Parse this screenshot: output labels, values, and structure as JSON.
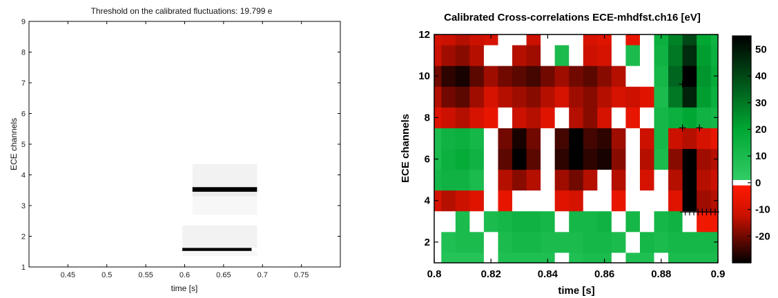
{
  "chart_data": [
    {
      "type": "heatmap",
      "title": "Threshold on the calibrated fluctuations: 19.799 e",
      "xlabel": "time [s]",
      "ylabel": "ECE channels",
      "xlim": [
        0.4,
        0.8
      ],
      "ylim": [
        1,
        9
      ],
      "xticks": [
        "0.45",
        "0.5",
        "0.55",
        "0.6",
        "0.65",
        "0.7",
        "0.75"
      ],
      "xtick_values": [
        0.45,
        0.5,
        0.55,
        0.6,
        0.65,
        0.7,
        0.75
      ],
      "yticks": [
        "1",
        "2",
        "3",
        "4",
        "5",
        "6",
        "7",
        "8",
        "9"
      ],
      "ytick_values": [
        1,
        2,
        3,
        4,
        5,
        6,
        7,
        8,
        9
      ],
      "colormap": [
        "#ffffff",
        "#000000"
      ],
      "cells": [
        {
          "x0": 0.61,
          "x1": 0.693,
          "y0": 3.6,
          "y1": 4.35,
          "value": 0.05
        },
        {
          "x0": 0.61,
          "x1": 0.693,
          "y0": 3.45,
          "y1": 3.6,
          "value": 1.0
        },
        {
          "x0": 0.61,
          "x1": 0.693,
          "y0": 3.3,
          "y1": 3.45,
          "value": 0.08
        },
        {
          "x0": 0.61,
          "x1": 0.693,
          "y0": 2.7,
          "y1": 3.3,
          "value": 0.03
        },
        {
          "x0": 0.597,
          "x1": 0.693,
          "y0": 1.62,
          "y1": 2.35,
          "value": 0.05
        },
        {
          "x0": 0.597,
          "x1": 0.686,
          "y0": 1.52,
          "y1": 1.62,
          "value": 1.0
        },
        {
          "x0": 0.597,
          "x1": 0.693,
          "y0": 1.35,
          "y1": 1.52,
          "value": 0.03
        }
      ]
    },
    {
      "type": "heatmap",
      "title": "Calibrated Cross-correlations ECE-mhdfst.ch16 [eV]",
      "xlabel": "time [s]",
      "ylabel": "ECE channels",
      "xlim": [
        0.8,
        0.9
      ],
      "ylim": [
        1,
        12
      ],
      "xticks": [
        "0.8",
        "0.82",
        "0.84",
        "0.86",
        "0.88",
        "0.9"
      ],
      "xtick_values": [
        0.8,
        0.82,
        0.84,
        0.86,
        0.88,
        0.9
      ],
      "yticks": [
        "2",
        "4",
        "6",
        "8",
        "10",
        "12"
      ],
      "ytick_values": [
        2,
        4,
        6,
        8,
        10,
        12
      ],
      "colorbar": {
        "ticks": [
          "50",
          "40",
          "30",
          "20",
          "10",
          "0",
          "-10",
          "-20"
        ],
        "tick_values": [
          50,
          40,
          30,
          20,
          10,
          0,
          -10,
          -20
        ],
        "range": [
          -30,
          55
        ],
        "neutral_band": [
          -1,
          1
        ]
      },
      "colors": {
        "positive_strong": "#000000",
        "positive_mid": "#00a833",
        "positive_weak": "#33cc66",
        "neutral": "#ffffff",
        "negative_weak": "#ff1a00",
        "negative_mid": "#cc1100",
        "negative_strong": "#000000"
      },
      "time_columns": [
        0.8,
        0.805,
        0.81,
        0.815,
        0.82,
        0.825,
        0.83,
        0.835,
        0.84,
        0.845,
        0.85,
        0.855,
        0.86,
        0.865,
        0.87,
        0.875,
        0.88,
        0.885,
        0.89,
        0.895,
        0.9
      ],
      "channel_rows": [
        1,
        2,
        3,
        4,
        5,
        6,
        7,
        8,
        9,
        10,
        11,
        12
      ],
      "values": [
        [
          0,
          6,
          6,
          6,
          0,
          8,
          8,
          8,
          8,
          0,
          8,
          10,
          10,
          0,
          8,
          8,
          0,
          10,
          10,
          10,
          10
        ],
        [
          0,
          8,
          10,
          10,
          0,
          10,
          12,
          12,
          10,
          10,
          10,
          12,
          12,
          10,
          0,
          12,
          10,
          12,
          12,
          12,
          12
        ],
        [
          0,
          0,
          10,
          0,
          10,
          12,
          14,
          14,
          12,
          0,
          12,
          12,
          14,
          0,
          12,
          0,
          12,
          14,
          0,
          -4,
          -4
        ],
        [
          -10,
          -14,
          -12,
          -8,
          0,
          -6,
          0,
          0,
          0,
          -8,
          -10,
          0,
          0,
          -6,
          0,
          0,
          0,
          -8,
          -40,
          -16,
          -14
        ],
        [
          12,
          14,
          14,
          10,
          0,
          -14,
          -18,
          -14,
          0,
          -16,
          -20,
          -14,
          0,
          -14,
          0,
          -10,
          0,
          -14,
          -30,
          -14,
          -12
        ],
        [
          10,
          16,
          18,
          14,
          0,
          -22,
          -30,
          -22,
          0,
          -26,
          -34,
          -26,
          -28,
          -18,
          0,
          -14,
          10,
          -18,
          -30,
          -16,
          -14
        ],
        [
          10,
          14,
          16,
          12,
          0,
          -20,
          -28,
          -20,
          0,
          -24,
          -30,
          -24,
          -26,
          -16,
          0,
          -12,
          12,
          -12,
          -14,
          -10,
          -6
        ],
        [
          -8,
          -12,
          -14,
          -10,
          -6,
          0,
          -12,
          -14,
          -8,
          0,
          -14,
          -18,
          -10,
          0,
          -6,
          0,
          12,
          16,
          20,
          14,
          12
        ],
        [
          -14,
          -20,
          -22,
          -16,
          -10,
          -14,
          -16,
          -18,
          -14,
          -10,
          -16,
          -18,
          -14,
          -10,
          -12,
          -8,
          10,
          30,
          48,
          22,
          16
        ],
        [
          -20,
          -26,
          -28,
          -22,
          -16,
          -20,
          -22,
          -24,
          -20,
          -16,
          -20,
          -22,
          -18,
          -14,
          0,
          0,
          12,
          34,
          55,
          24,
          18
        ],
        [
          -12,
          -16,
          -18,
          -14,
          0,
          0,
          -14,
          -16,
          0,
          10,
          0,
          -12,
          -10,
          0,
          10,
          0,
          14,
          30,
          46,
          22,
          16
        ],
        [
          -10,
          -12,
          -14,
          -12,
          -10,
          0,
          0,
          -12,
          0,
          0,
          0,
          -10,
          -8,
          0,
          -6,
          0,
          16,
          28,
          40,
          20,
          14
        ]
      ],
      "markers": [
        {
          "x": 0.8875,
          "y": 9.6
        },
        {
          "x": 0.8875,
          "y": 7.5
        },
        {
          "x": 0.8935,
          "y": 7.5
        },
        {
          "x": 0.8885,
          "y": 3.45
        },
        {
          "x": 0.89,
          "y": 3.45
        },
        {
          "x": 0.8915,
          "y": 3.45
        },
        {
          "x": 0.893,
          "y": 3.45
        },
        {
          "x": 0.8945,
          "y": 3.45
        },
        {
          "x": 0.896,
          "y": 3.45
        },
        {
          "x": 0.8975,
          "y": 3.45
        },
        {
          "x": 0.899,
          "y": 3.45
        }
      ]
    }
  ]
}
